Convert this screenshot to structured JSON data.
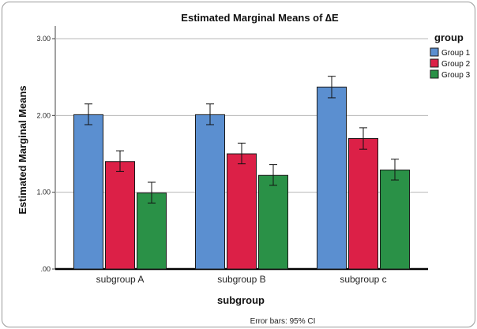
{
  "chart_data": {
    "type": "bar",
    "title": "Estimated Marginal Means of ∆E",
    "xlabel": "subgroup",
    "ylabel": "Estimated Marginal Means",
    "ylim": [
      0,
      3.0
    ],
    "yticks": [
      0,
      1.0,
      2.0,
      3.0
    ],
    "ytick_labels": [
      ".00",
      "1.00",
      "2.00",
      "3.00"
    ],
    "grid": true,
    "legend_title": "group",
    "legend_position": "right",
    "categories": [
      "subgroup A",
      "subgroup B",
      "subgroup c"
    ],
    "series": [
      {
        "name": "Group 1",
        "color": "#5b8fd0",
        "values": [
          2.01,
          2.01,
          2.37
        ],
        "err_low": [
          1.88,
          1.88,
          2.23
        ],
        "err_high": [
          2.15,
          2.15,
          2.51
        ]
      },
      {
        "name": "Group 2",
        "color": "#dc2047",
        "values": [
          1.4,
          1.5,
          1.7
        ],
        "err_low": [
          1.27,
          1.37,
          1.56
        ],
        "err_high": [
          1.54,
          1.64,
          1.84
        ]
      },
      {
        "name": "Group 3",
        "color": "#2a9147",
        "values": [
          0.99,
          1.22,
          1.29
        ],
        "err_low": [
          0.86,
          1.09,
          1.16
        ],
        "err_high": [
          1.13,
          1.36,
          1.43
        ]
      }
    ],
    "footnote": "Error bars: 95% CI"
  }
}
